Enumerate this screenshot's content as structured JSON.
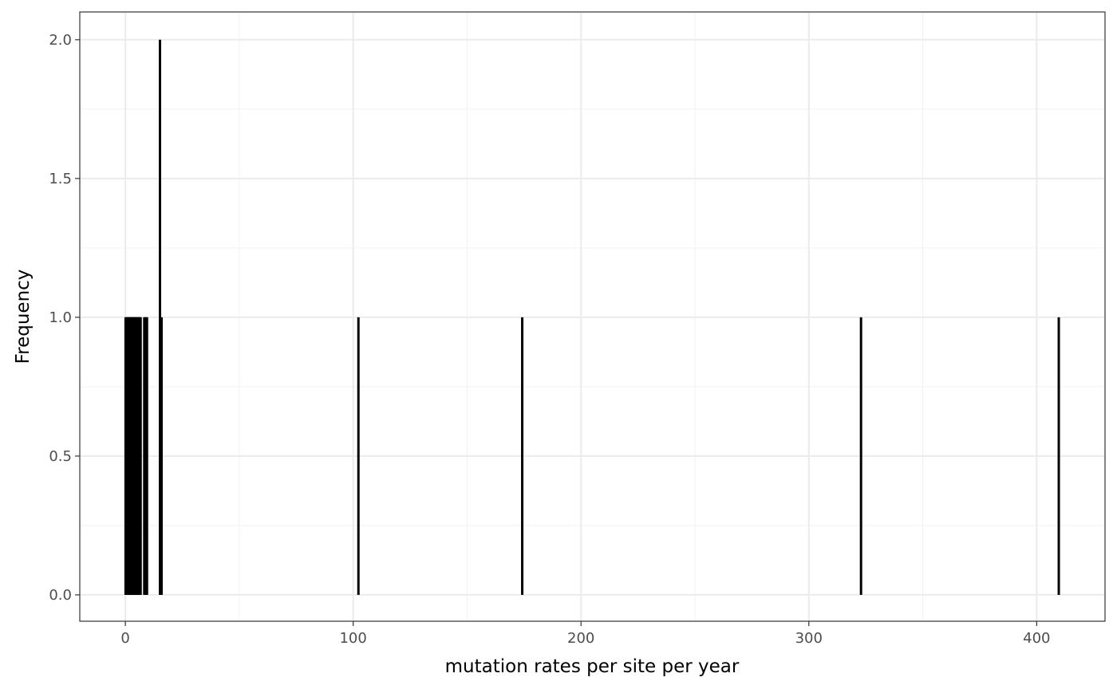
{
  "chart_data": {
    "type": "bar",
    "title": "",
    "xlabel": "mutation rates per site per year",
    "ylabel": "Frequency",
    "xlim": [
      -20,
      430
    ],
    "ylim": [
      -0.095,
      2.1
    ],
    "x_ticks": [
      0,
      100,
      200,
      300,
      400
    ],
    "x_tick_labels": [
      "0",
      "100",
      "200",
      "300",
      "400"
    ],
    "y_ticks": [
      0.0,
      0.5,
      1.0,
      1.5,
      2.0
    ],
    "y_tick_labels": [
      "0.0",
      "0.5",
      "1.0",
      "1.5",
      "2.0"
    ],
    "x_minor_ticks": [
      50,
      150,
      250,
      350
    ],
    "y_minor_ticks": [
      0.25,
      0.75,
      1.25,
      1.75
    ],
    "grid": true,
    "legend": "none",
    "bar_color": "#000000",
    "series": [
      {
        "values": [
          {
            "x": 0.1,
            "y": 1
          },
          {
            "x": 0.3,
            "y": 1
          },
          {
            "x": 0.5,
            "y": 1
          },
          {
            "x": 0.7,
            "y": 1
          },
          {
            "x": 0.9,
            "y": 1
          },
          {
            "x": 1.1,
            "y": 1
          },
          {
            "x": 1.3,
            "y": 1
          },
          {
            "x": 1.5,
            "y": 1
          },
          {
            "x": 1.7,
            "y": 1
          },
          {
            "x": 1.9,
            "y": 1
          },
          {
            "x": 2.1,
            "y": 1
          },
          {
            "x": 2.3,
            "y": 1
          },
          {
            "x": 2.5,
            "y": 1
          },
          {
            "x": 2.7,
            "y": 1
          },
          {
            "x": 2.9,
            "y": 1
          },
          {
            "x": 3.1,
            "y": 1
          },
          {
            "x": 3.3,
            "y": 1
          },
          {
            "x": 3.5,
            "y": 1
          },
          {
            "x": 3.7,
            "y": 1
          },
          {
            "x": 3.9,
            "y": 1
          },
          {
            "x": 4.1,
            "y": 1
          },
          {
            "x": 4.3,
            "y": 1
          },
          {
            "x": 4.5,
            "y": 1
          },
          {
            "x": 4.7,
            "y": 1
          },
          {
            "x": 4.9,
            "y": 1
          },
          {
            "x": 5.1,
            "y": 1
          },
          {
            "x": 5.3,
            "y": 1
          },
          {
            "x": 5.5,
            "y": 1
          },
          {
            "x": 5.7,
            "y": 1
          },
          {
            "x": 5.9,
            "y": 1
          },
          {
            "x": 6.1,
            "y": 1
          },
          {
            "x": 6.3,
            "y": 1
          },
          {
            "x": 6.5,
            "y": 1
          },
          {
            "x": 6.7,
            "y": 1
          },
          {
            "x": 8.3,
            "y": 1
          },
          {
            "x": 8.6,
            "y": 1
          },
          {
            "x": 8.9,
            "y": 1
          },
          {
            "x": 9.2,
            "y": 1
          },
          {
            "x": 9.5,
            "y": 1
          },
          {
            "x": 15.2,
            "y": 2
          },
          {
            "x": 15.9,
            "y": 1
          },
          {
            "x": 102.3,
            "y": 1
          },
          {
            "x": 174.2,
            "y": 1
          },
          {
            "x": 322.9,
            "y": 1
          },
          {
            "x": 409.7,
            "y": 1
          }
        ]
      }
    ]
  }
}
